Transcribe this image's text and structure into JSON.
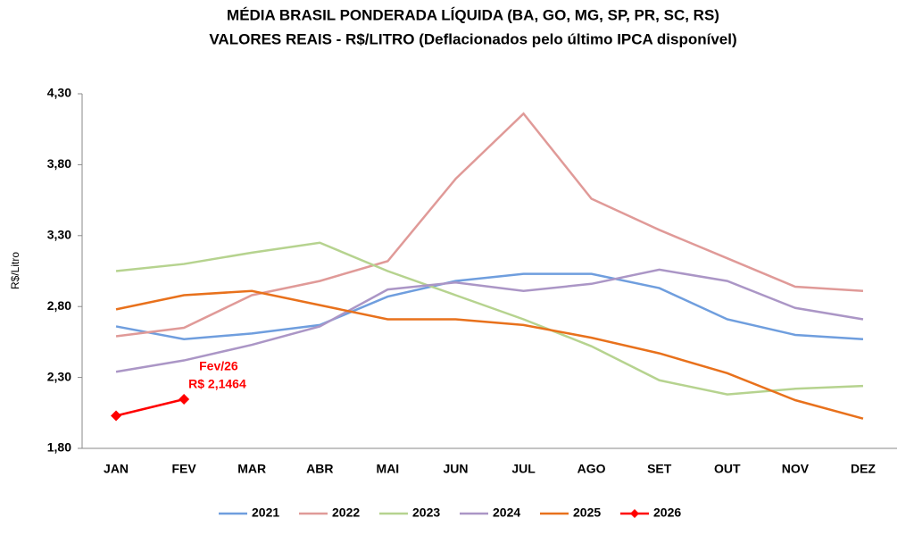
{
  "chart_data": {
    "type": "line",
    "title": "MÉDIA BRASIL PONDERADA LÍQUIDA (BA, GO, MG, SP, PR, SC, RS)",
    "subtitle": "VALORES REAIS - R$/LITRO (Deflacionados pelo último IPCA disponível)",
    "y_label": "R$/Litro",
    "categories": [
      "JAN",
      "FEV",
      "MAR",
      "ABR",
      "MAI",
      "JUN",
      "JUL",
      "AGO",
      "SET",
      "OUT",
      "NOV",
      "DEZ"
    ],
    "ylim": [
      1.8,
      4.3
    ],
    "yticks": [
      {
        "value": 1.8,
        "label": "1,80"
      },
      {
        "value": 2.3,
        "label": "2,30"
      },
      {
        "value": 2.8,
        "label": "2,80"
      },
      {
        "value": 3.3,
        "label": "3,30"
      },
      {
        "value": 3.8,
        "label": "3,80"
      },
      {
        "value": 4.3,
        "label": "4,30"
      }
    ],
    "grid": false,
    "legend": "bottom",
    "series": [
      {
        "name": "2021",
        "color": "#6f9ede",
        "values": [
          2.66,
          2.57,
          2.61,
          2.67,
          2.87,
          2.98,
          3.03,
          3.03,
          2.93,
          2.71,
          2.6,
          2.57
        ]
      },
      {
        "name": "2022",
        "color": "#e09a98",
        "values": [
          2.59,
          2.65,
          2.88,
          2.98,
          3.12,
          3.7,
          4.16,
          3.56,
          3.34,
          3.14,
          2.94,
          2.91
        ]
      },
      {
        "name": "2023",
        "color": "#b6d38f",
        "values": [
          3.05,
          3.1,
          3.18,
          3.25,
          3.05,
          2.88,
          2.71,
          2.52,
          2.28,
          2.18,
          2.22,
          2.24
        ]
      },
      {
        "name": "2024",
        "color": "#ab96c6",
        "values": [
          2.34,
          2.42,
          2.53,
          2.66,
          2.92,
          2.97,
          2.91,
          2.96,
          3.06,
          2.98,
          2.79,
          2.71
        ]
      },
      {
        "name": "2025",
        "color": "#e8711c",
        "values": [
          2.78,
          2.88,
          2.91,
          2.81,
          2.71,
          2.71,
          2.67,
          2.58,
          2.47,
          2.33,
          2.14,
          2.01
        ]
      },
      {
        "name": "2026",
        "color": "#ff0000",
        "marker": "diamond",
        "values": [
          2.03,
          2.1464,
          null,
          null,
          null,
          null,
          null,
          null,
          null,
          null,
          null,
          null
        ],
        "value_labels": [
          null,
          "R$ 2,1464",
          null,
          null,
          null,
          null,
          null,
          null,
          null,
          null,
          null,
          null
        ],
        "annotation": "Fev/26"
      }
    ]
  }
}
